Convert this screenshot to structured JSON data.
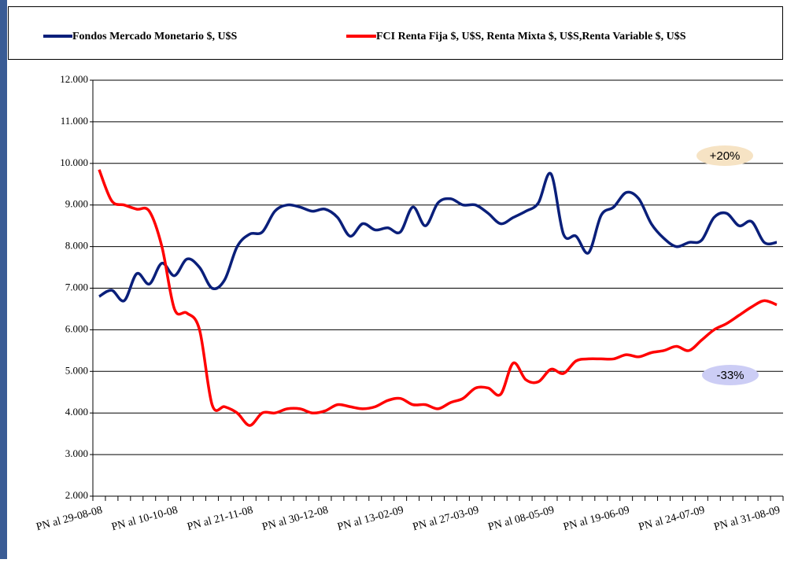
{
  "chart_data": {
    "type": "line",
    "categories": [
      "PN al 29-08-08",
      null,
      null,
      null,
      null,
      null,
      "PN al 10-10-08",
      null,
      null,
      null,
      null,
      null,
      "PN al 21-11-08",
      null,
      null,
      null,
      null,
      null,
      "PN al 30-12-08",
      null,
      null,
      null,
      null,
      null,
      "PN al 13-02-09",
      null,
      null,
      null,
      null,
      null,
      "PN al 27-03-09",
      null,
      null,
      null,
      null,
      null,
      "PN al 08-05-09",
      null,
      null,
      null,
      null,
      null,
      "PN al 19-06-09",
      null,
      null,
      null,
      null,
      null,
      "PN al 24-07-09",
      null,
      null,
      null,
      null,
      null,
      "PN al 31-08-09"
    ],
    "series": [
      {
        "name": "Fondos Mercado Monetario $, U$S",
        "color": "#0a1f7a",
        "values": [
          6800,
          6950,
          6700,
          7350,
          7100,
          7600,
          7300,
          7700,
          7500,
          7000,
          7200,
          8000,
          8300,
          8350,
          8850,
          9000,
          8950,
          8850,
          8900,
          8700,
          8250,
          8550,
          8400,
          8450,
          8350,
          8950,
          8500,
          9050,
          9150,
          9000,
          9000,
          8800,
          8550,
          8700,
          8850,
          9050,
          9750,
          8300,
          8250,
          7850,
          8750,
          8950,
          9300,
          9150,
          8550,
          8200,
          8000,
          8100,
          8150,
          8700,
          8800,
          8500,
          8600,
          8100,
          8100
        ]
      },
      {
        "name": "FCI Renta Fija $, U$S, Renta Mixta $, U$S,Renta Variable $, U$S",
        "color": "#ff0000",
        "values": [
          9850,
          9100,
          9000,
          8900,
          8850,
          8000,
          6500,
          6400,
          6000,
          4200,
          4150,
          4000,
          3700,
          4000,
          4000,
          4100,
          4100,
          4000,
          4050,
          4200,
          4150,
          4100,
          4150,
          4300,
          4350,
          4200,
          4200,
          4100,
          4250,
          4350,
          4600,
          4600,
          4450,
          5200,
          4800,
          4750,
          5050,
          4950,
          5250,
          5300,
          5300,
          5300,
          5400,
          5350,
          5450,
          5500,
          5600,
          5500,
          5750,
          6000,
          6150,
          6350,
          6550,
          6700,
          6600
        ]
      }
    ],
    "ylim": [
      2000,
      12000
    ],
    "yticks": [
      {
        "value": 2000,
        "label": "2.000"
      },
      {
        "value": 3000,
        "label": "3.000"
      },
      {
        "value": 4000,
        "label": "4.000"
      },
      {
        "value": 5000,
        "label": "5.000"
      },
      {
        "value": 6000,
        "label": "6.000"
      },
      {
        "value": 7000,
        "label": "7.000"
      },
      {
        "value": 8000,
        "label": "8.000"
      },
      {
        "value": 9000,
        "label": "9.000"
      },
      {
        "value": 10000,
        "label": "10.000"
      },
      {
        "value": 11000,
        "label": "11.000"
      },
      {
        "value": 12000,
        "label": "12.000"
      }
    ],
    "grid": true,
    "annotations": [
      "+20%",
      "-33%"
    ]
  }
}
